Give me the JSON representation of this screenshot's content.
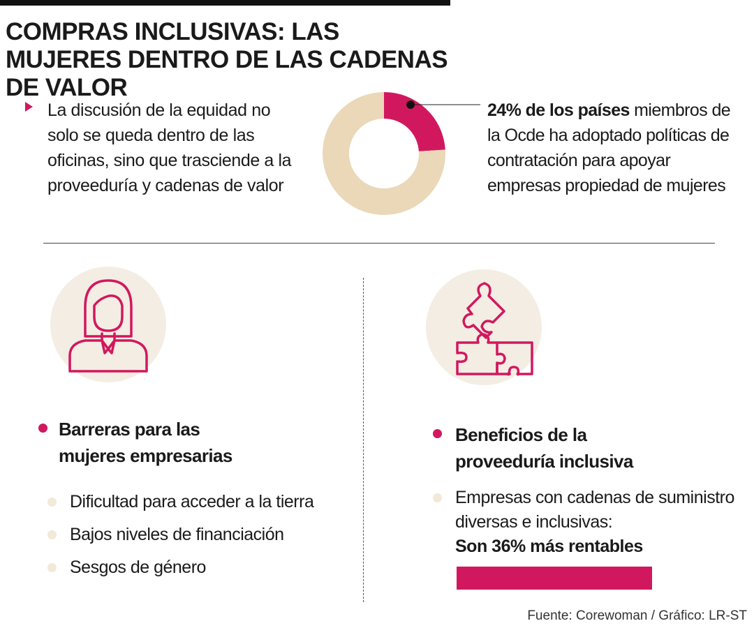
{
  "title": "COMPRAS INCLUSIVAS: LAS MUJERES DENTRO DE LAS CADENAS DE VALOR",
  "intro": "La discusión de la equidad no solo se queda dentro de las oficinas, sino que trasciende a la proveeduría y cadenas de valor",
  "stat": {
    "highlight": "24% de los países",
    "rest": " miembros de la Ocde ha adoptado políticas de contratación para apoyar empresas propiedad de mujeres"
  },
  "barriers": {
    "heading": "Barreras para las mujeres empresarias",
    "items": [
      "Dificultad para acceder a la tierra",
      "Bajos niveles de financiación",
      "Sesgos de género"
    ]
  },
  "benefits": {
    "heading": "Beneficios de la proveeduría inclusiva",
    "item": "Empresas con cadenas de suministro diversas e inclusivas:",
    "strong": "Son 36% más rentables"
  },
  "source": "Fuente: Corewoman / Gráfico: LR-ST",
  "colors": {
    "accent": "#d1185f",
    "beige": "#ead8b8",
    "circle_bg": "#f3ede3",
    "dot_light": "#f2e9d8"
  },
  "icons": [
    "businesswoman-icon",
    "puzzle-pieces-icon"
  ],
  "chart_data": {
    "type": "pie",
    "variant": "donut",
    "categories": [
      "",
      ""
    ],
    "values": [
      24,
      76
    ],
    "colors": [
      "#d1185f",
      "#ead8b8"
    ],
    "title": "",
    "unit": "%"
  }
}
